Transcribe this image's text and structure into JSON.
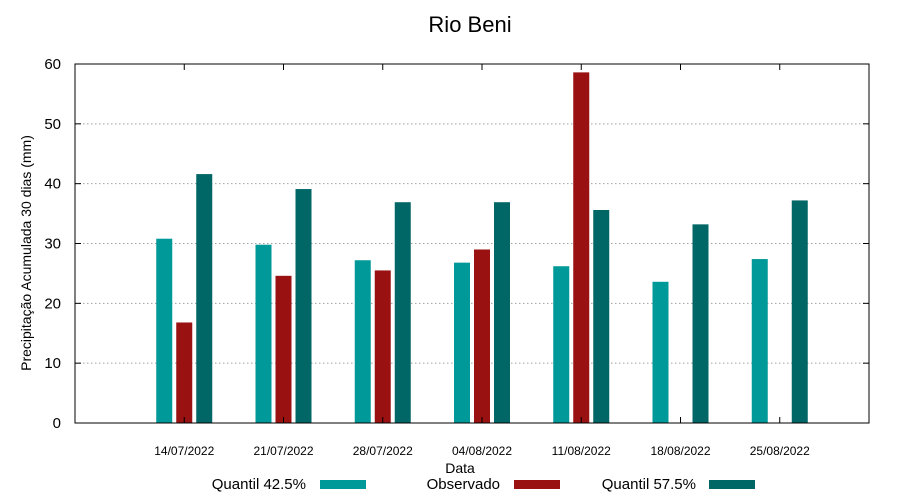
{
  "chart_data": {
    "type": "bar",
    "title": "Rio Beni",
    "xlabel": "Data",
    "ylabel": "Precipitação Acumulada 30 dias (mm)",
    "ylim": [
      0,
      60
    ],
    "yticks": [
      0,
      10,
      20,
      30,
      40,
      50,
      60
    ],
    "grid": true,
    "legend_position": "bottom",
    "categories": [
      "14/07/2022",
      "21/07/2022",
      "28/07/2022",
      "04/08/2022",
      "11/08/2022",
      "18/08/2022",
      "25/08/2022"
    ],
    "series": [
      {
        "name": "Quantil 42.5%",
        "color": "#009999",
        "values": [
          30.8,
          29.8,
          27.2,
          26.8,
          26.2,
          23.6,
          27.4
        ]
      },
      {
        "name": "Observado",
        "color": "#991111",
        "values": [
          16.8,
          24.6,
          25.5,
          29.0,
          58.6,
          null,
          null
        ]
      },
      {
        "name": "Quantil 57.5%",
        "color": "#006666",
        "values": [
          41.6,
          39.1,
          36.9,
          36.9,
          35.6,
          33.2,
          37.2
        ]
      }
    ]
  }
}
